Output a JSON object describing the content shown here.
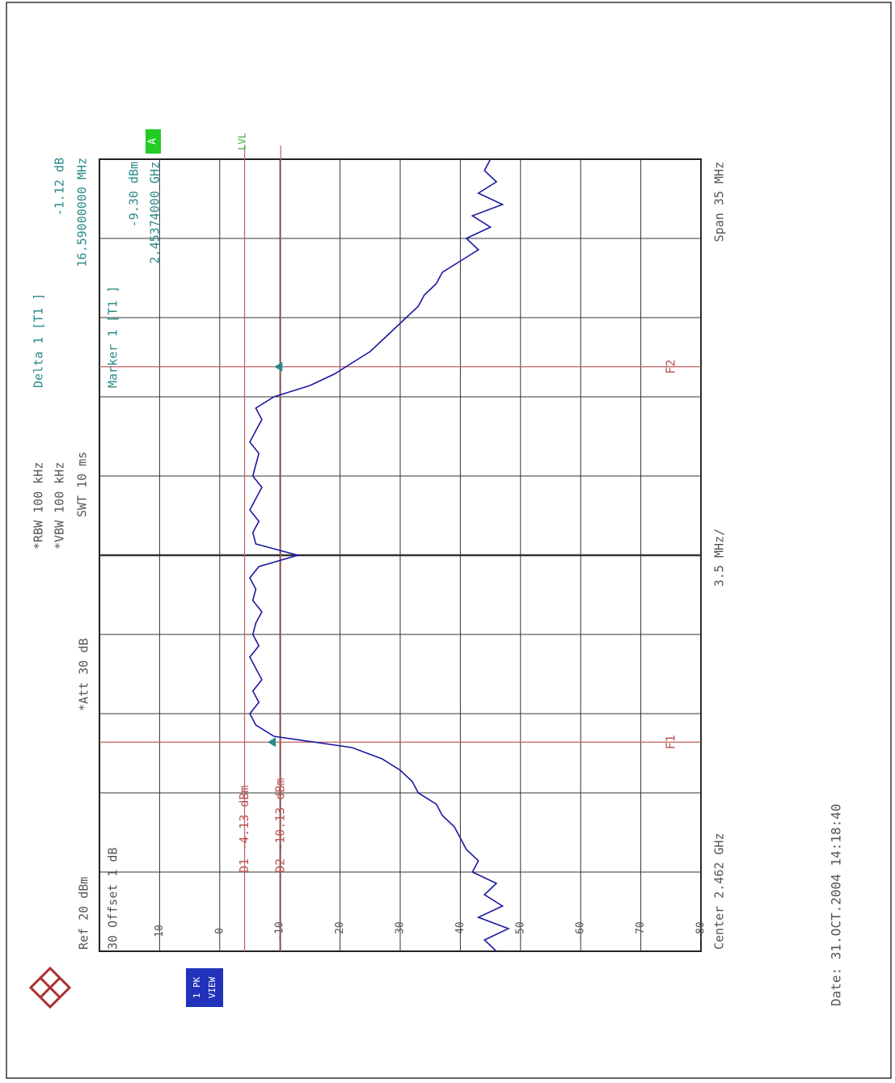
{
  "chart_data": {
    "type": "line",
    "header": {
      "ref": "Ref  20 dBm",
      "offset": "30 Offset  1 dB",
      "att": "*Att  30 dB",
      "rbw": "*RBW 100 kHz",
      "vbw": "*VBW 100 kHz",
      "swt": "SWT 10 ms",
      "delta_title": "Delta 1 [T1 ]",
      "delta_level": "-1.12 dB",
      "delta_freq": "16.59000000 MHz",
      "marker_title": "Marker 1 [T1 ]",
      "marker_level": "-9.30 dBm",
      "marker_freq": "2.45374000 GHz",
      "lvl": "LVL",
      "trace_flag": "A",
      "view_1": "1 PK",
      "view_2": "VIEW"
    },
    "footer": {
      "center": "Center 2.462 GHz",
      "division": "3.5 MHz/",
      "span": "Span 35 MHz",
      "date": "Date: 31.OCT.2004  14:18:40"
    },
    "color": "#1a1aa0",
    "xlim": [
      2.4445,
      2.4795
    ],
    "ylim": [
      -80,
      20
    ],
    "yticks": [
      10,
      0,
      -10,
      -20,
      -30,
      -40,
      -50,
      -60,
      -70,
      -80
    ],
    "grid": true,
    "x": [
      2.4445,
      2.445,
      2.4455,
      2.446,
      2.4465,
      2.447,
      2.4475,
      2.448,
      2.4485,
      2.449,
      2.4495,
      2.45,
      2.4505,
      2.451,
      2.4515,
      2.452,
      2.4525,
      2.453,
      2.4535,
      2.454,
      2.4545,
      2.455,
      2.4555,
      2.456,
      2.4565,
      2.457,
      2.4575,
      2.458,
      2.4585,
      2.459,
      2.4595,
      2.46,
      2.4605,
      2.461,
      2.4615,
      2.462,
      2.4625,
      2.463,
      2.4635,
      2.464,
      2.4645,
      2.465,
      2.4655,
      2.466,
      2.4665,
      2.467,
      2.4675,
      2.468,
      2.4685,
      2.469,
      2.4695,
      2.47,
      2.4705,
      2.471,
      2.4715,
      2.472,
      2.4725,
      2.473,
      2.4735,
      2.474,
      2.4745,
      2.475,
      2.4755,
      2.476,
      2.4765,
      2.477,
      2.4775,
      2.478,
      2.4785,
      2.479,
      2.4795
    ],
    "values": [
      -46,
      -44,
      -48,
      -43,
      -47,
      -44,
      -46,
      -42,
      -43,
      -41,
      -40,
      -39,
      -37,
      -36,
      -33,
      -32,
      -30,
      -27,
      -22,
      -9,
      -6,
      -5,
      -6.5,
      -5.5,
      -7,
      -6,
      -5,
      -6.5,
      -5.5,
      -6,
      -7,
      -5.5,
      -6,
      -5,
      -6.5,
      -13,
      -6,
      -5.5,
      -6.5,
      -5,
      -6,
      -7,
      -5.5,
      -6,
      -6.5,
      -5,
      -6,
      -7,
      -6,
      -9,
      -15,
      -19,
      -22,
      -25,
      -27,
      -29,
      -31,
      -33,
      -34,
      -36,
      -37,
      -40,
      -43,
      -41,
      -45,
      -42,
      -47,
      -43,
      -46,
      -44,
      -45
    ],
    "display_lines": [
      {
        "label": "D1 -4.13 dBm",
        "value": -4.13
      },
      {
        "label": "D2 -10.13 dBm",
        "value": -10.13
      }
    ],
    "frequency_lines": [
      {
        "label": "F1",
        "value": 2.45374
      },
      {
        "label": "F2",
        "value": 2.47033
      }
    ],
    "markers": [
      {
        "x": 2.45374,
        "y": -9.3
      },
      {
        "x": 2.47033,
        "y": -10.42
      }
    ]
  }
}
